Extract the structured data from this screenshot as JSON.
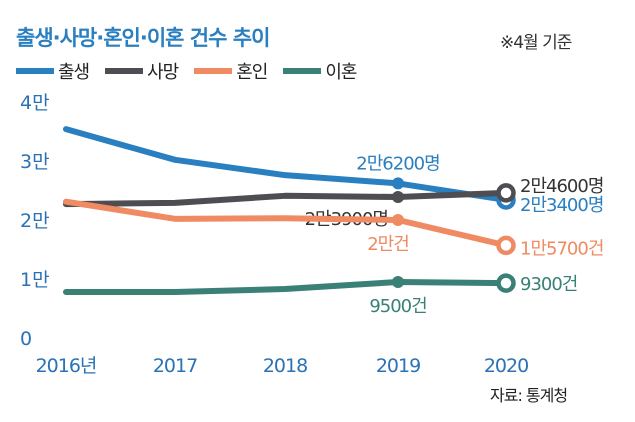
{
  "chart_data": {
    "type": "line",
    "title": "출생·사망·혼인·이혼 건수 추이",
    "note": "※4월 기준",
    "source": "자료: 통계청",
    "xlabel": "",
    "ylabel": "",
    "x": [
      "2016년",
      "2017",
      "2018",
      "2019",
      "2020"
    ],
    "ylim": [
      0,
      40000
    ],
    "yticks": [
      {
        "value": 0,
        "label": "0"
      },
      {
        "value": 10000,
        "label": "1만"
      },
      {
        "value": 20000,
        "label": "2만"
      },
      {
        "value": 30000,
        "label": "3만"
      },
      {
        "value": 40000,
        "label": "4만"
      }
    ],
    "grid": false,
    "legend_position": "top-left",
    "series": [
      {
        "name": "출생",
        "color": "#2a7fc0",
        "values": [
          35400,
          30200,
          27600,
          26200,
          23400
        ],
        "labels": [
          null,
          null,
          null,
          "2만6200명",
          "2만3400명"
        ]
      },
      {
        "name": "사망",
        "color": "#4d4d52",
        "values": [
          22700,
          22900,
          24100,
          23900,
          24600
        ],
        "labels": [
          null,
          null,
          null,
          "2만3900명",
          "2만4600명"
        ]
      },
      {
        "name": "혼인",
        "color": "#f08a62",
        "values": [
          23100,
          20200,
          20300,
          20000,
          15700
        ],
        "labels": [
          null,
          null,
          null,
          "2만건",
          "1만5700건"
        ]
      },
      {
        "name": "이혼",
        "color": "#3a8076",
        "values": [
          7800,
          7800,
          8300,
          9500,
          9300
        ],
        "labels": [
          null,
          null,
          null,
          "9500건",
          "9300건"
        ]
      }
    ]
  }
}
